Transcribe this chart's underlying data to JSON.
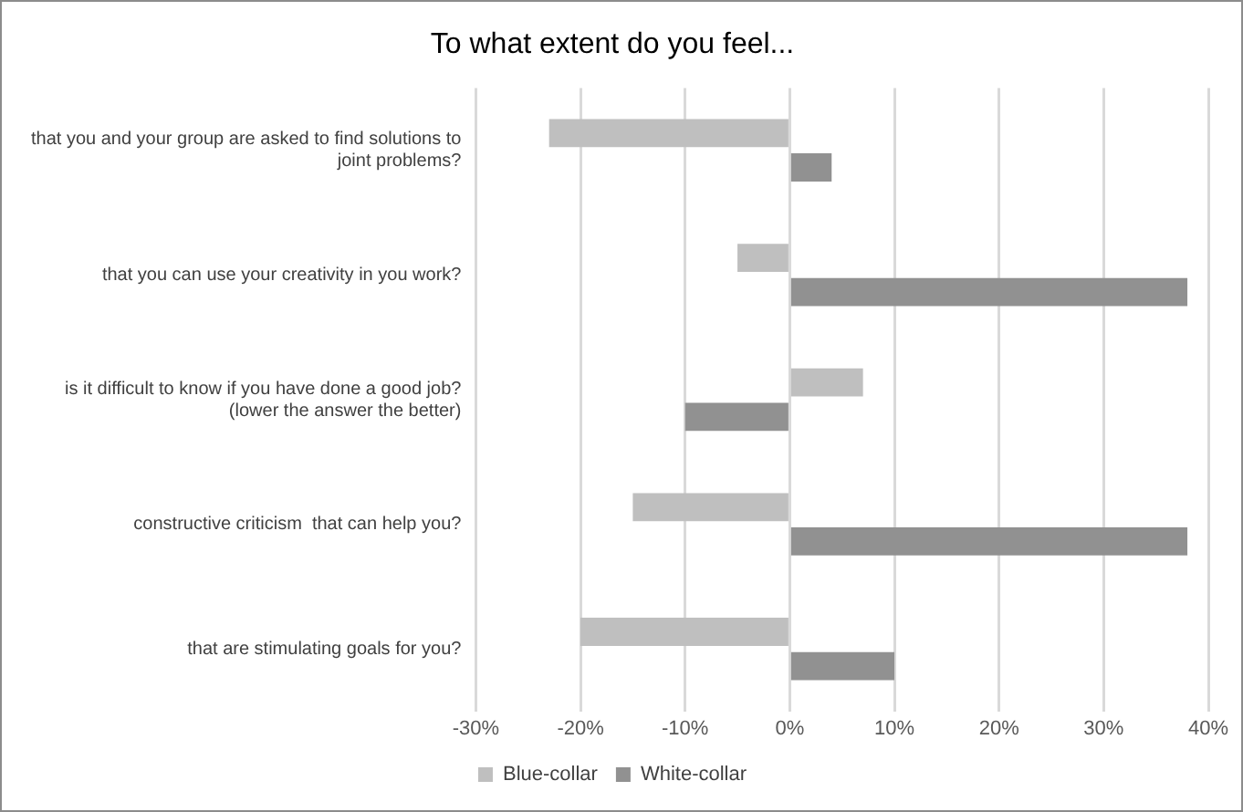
{
  "chart_data": {
    "type": "bar",
    "orientation": "horizontal",
    "title": "To what extent do you feel...",
    "categories": [
      "that you and your group are asked to find solutions to joint problems?",
      "that you can use your creativity in you work?",
      "is it difficult to know if you have done a good job? (lower the answer the better)",
      "constructive criticism  that can help you?",
      "that are stimulating goals for you?"
    ],
    "series": [
      {
        "name": "Blue-collar",
        "color": "#bfbfbf",
        "values": [
          -23,
          -5,
          7,
          -15,
          -20
        ]
      },
      {
        "name": "White-collar",
        "color": "#919191",
        "values": [
          4,
          38,
          -10,
          38,
          10
        ]
      }
    ],
    "xlim": [
      -30,
      40
    ],
    "xticks": [
      {
        "value": -30,
        "label": "-30%"
      },
      {
        "value": -20,
        "label": "-20%"
      },
      {
        "value": -10,
        "label": "-10%"
      },
      {
        "value": 0,
        "label": "0%"
      },
      {
        "value": 10,
        "label": "10%"
      },
      {
        "value": 20,
        "label": "20%"
      },
      {
        "value": 30,
        "label": "30%"
      },
      {
        "value": 40,
        "label": "40%"
      }
    ],
    "grid": "x",
    "legend": "bottom"
  }
}
